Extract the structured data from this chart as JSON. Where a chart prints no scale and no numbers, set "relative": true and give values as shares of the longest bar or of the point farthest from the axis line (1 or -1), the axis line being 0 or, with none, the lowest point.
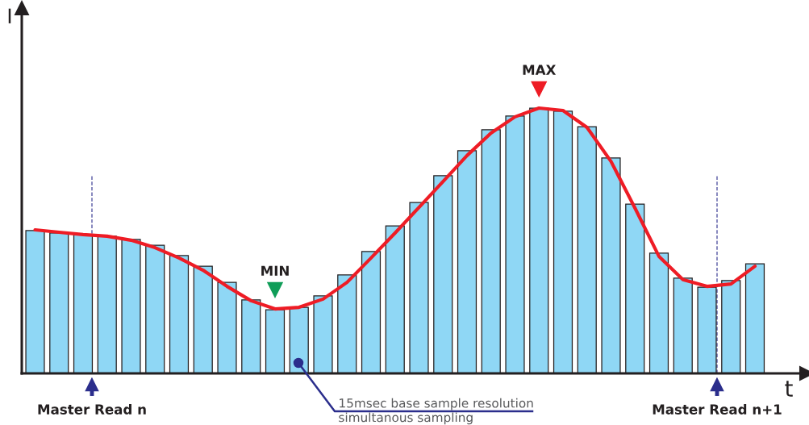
{
  "chart_data": [
    {
      "type": "bar",
      "relative": true,
      "xlabel": "t",
      "ylabel": "I",
      "color": "#8fd7f5",
      "categories": [
        null,
        null,
        null,
        null,
        null,
        null,
        null,
        null,
        null,
        null,
        null,
        null,
        null,
        null,
        null,
        null,
        null,
        null,
        null,
        null,
        null,
        null,
        null,
        null,
        null,
        null,
        null,
        null,
        null,
        null,
        null
      ],
      "values": [
        0.538,
        0.529,
        0.523,
        0.517,
        0.505,
        0.483,
        0.444,
        0.404,
        0.343,
        0.277,
        0.24,
        0.249,
        0.292,
        0.371,
        0.459,
        0.556,
        0.644,
        0.745,
        0.839,
        0.918,
        0.97,
        1,
        0.988,
        0.93,
        0.812,
        0.638,
        0.453,
        0.359,
        0.325,
        0.35,
        0.413
      ],
      "annotations": [
        "Master Read n",
        "Master Read n+1",
        "15msec base sample resolution\nsimultanous sampling"
      ],
      "grid": false,
      "legend": false
    },
    {
      "type": "line",
      "relative": true,
      "color": "#ee1c25",
      "categories": [
        null,
        null,
        null,
        null,
        null,
        null,
        null,
        null,
        null,
        null,
        null,
        null,
        null,
        null,
        null,
        null,
        null,
        null,
        null,
        null,
        null,
        null,
        null,
        null,
        null,
        null,
        null,
        null,
        null,
        null,
        null
      ],
      "values": [
        0.541,
        0.532,
        0.523,
        0.517,
        0.502,
        0.474,
        0.435,
        0.389,
        0.328,
        0.274,
        0.243,
        0.249,
        0.28,
        0.343,
        0.435,
        0.529,
        0.626,
        0.723,
        0.821,
        0.906,
        0.967,
        1,
        0.991,
        0.927,
        0.799,
        0.623,
        0.441,
        0.353,
        0.328,
        0.337,
        0.404
      ],
      "annotations": [
        "MAX",
        "MIN"
      ],
      "marker": "none",
      "line_style": "solid"
    }
  ]
}
